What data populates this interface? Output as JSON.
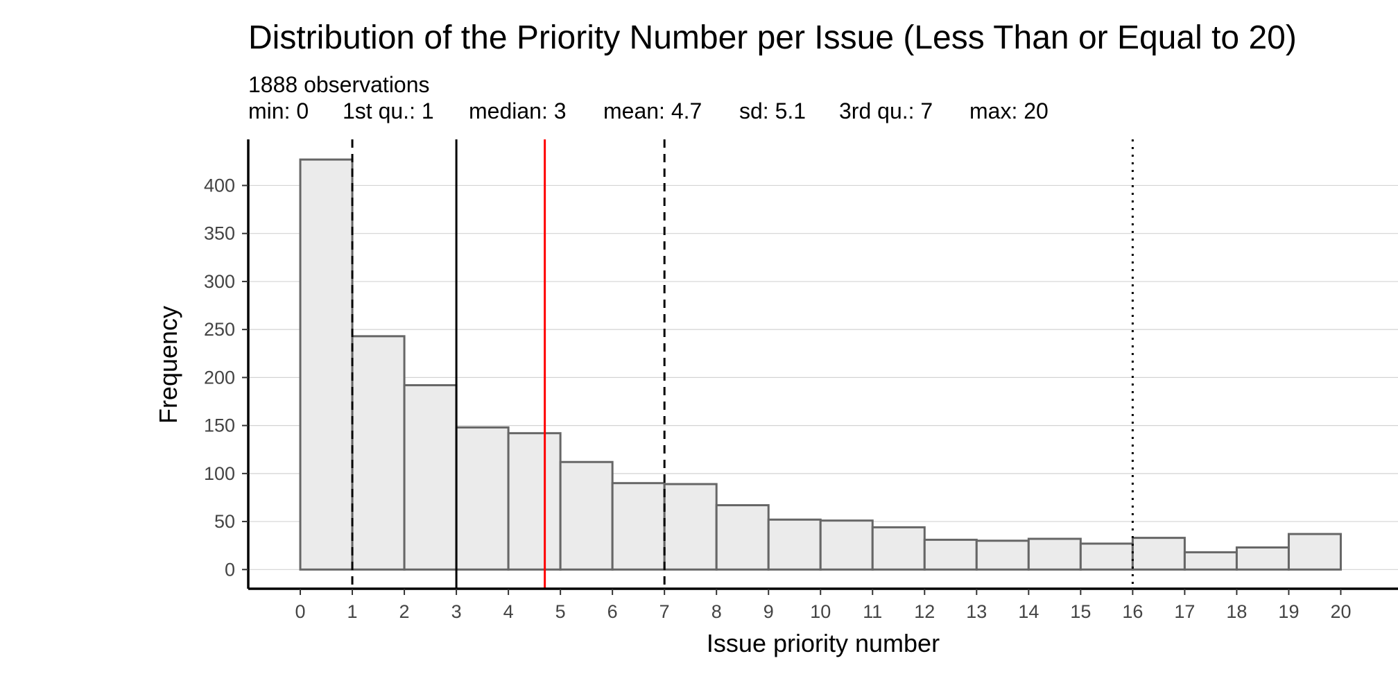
{
  "chart_data": {
    "type": "bar",
    "title": "Distribution of the Priority Number per Issue (Less Than or Equal to 20)",
    "subtitle": "1888 observations",
    "stats": [
      "min: 0",
      "1st qu.: 1",
      "median: 3",
      "mean: 4.7",
      "sd: 5.1",
      "3rd qu.: 7",
      "max: 20"
    ],
    "xlabel": "Issue priority number",
    "ylabel": "Frequency",
    "bin_edges": [
      0,
      1,
      2,
      3,
      4,
      5,
      6,
      7,
      8,
      9,
      10,
      11,
      12,
      13,
      14,
      15,
      16,
      17,
      18,
      19,
      20
    ],
    "values": [
      427,
      243,
      192,
      148,
      142,
      112,
      90,
      89,
      67,
      52,
      51,
      44,
      31,
      30,
      32,
      27,
      33,
      18,
      23,
      37
    ],
    "x_ticks": [
      "0",
      "1",
      "2",
      "3",
      "4",
      "5",
      "6",
      "7",
      "8",
      "9",
      "10",
      "11",
      "12",
      "13",
      "14",
      "15",
      "16",
      "17",
      "18",
      "19",
      "20"
    ],
    "y_ticks": [
      "0",
      "50",
      "100",
      "150",
      "200",
      "250",
      "300",
      "350",
      "400"
    ],
    "xlim": [
      -1,
      21.1
    ],
    "ylim": [
      -20,
      448
    ],
    "grid": "horizontal",
    "reference_lines": [
      {
        "value": 1,
        "style": "dashed",
        "color": "#000000"
      },
      {
        "value": 3,
        "style": "solid",
        "color": "#000000"
      },
      {
        "value": 4.7,
        "style": "solid",
        "color": "#ff0000"
      },
      {
        "value": 7,
        "style": "dashed",
        "color": "#000000"
      },
      {
        "value": 16,
        "style": "dotted",
        "color": "#000000"
      }
    ],
    "bar_fill": "#ebebeb",
    "bar_stroke": "#666666",
    "gridline_color": "#d3d3d3"
  }
}
